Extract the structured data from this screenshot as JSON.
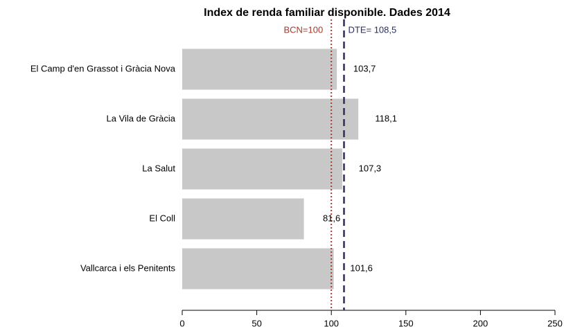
{
  "chart_data": {
    "type": "bar",
    "orientation": "horizontal",
    "title": "Index de renda familiar disponible. Dades 2014",
    "categories": [
      "El Camp d'en Grassot i Gràcia Nova",
      "La Vila de Gràcia",
      "La Salut",
      "El Coll",
      "Vallcarca i els Penitents"
    ],
    "values": [
      103.7,
      118.1,
      107.3,
      81.6,
      101.6
    ],
    "value_labels": [
      "103,7",
      "118,1",
      "107,3",
      "81,6",
      "101,6"
    ],
    "color": "#c8c8c8",
    "xlim": [
      0,
      250
    ],
    "xticks": [
      0,
      50,
      100,
      150,
      200,
      250
    ],
    "reference_lines": [
      {
        "value": 100,
        "label": "BCN=100",
        "color": "#a33a2c",
        "style": "dotted"
      },
      {
        "value": 108.5,
        "label": "DTE= 108,5",
        "color": "#2b2d5c",
        "style": "dashed"
      }
    ]
  }
}
